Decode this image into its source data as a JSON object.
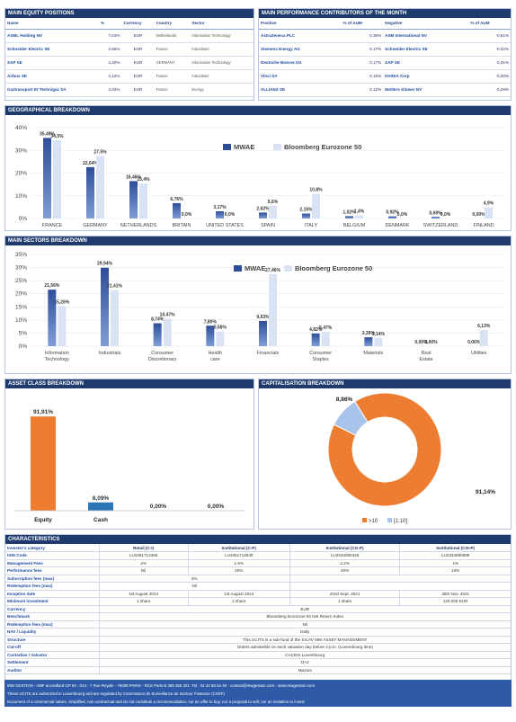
{
  "equity": {
    "title": "MAIN EQUITY POSITIONS",
    "cols": [
      "Name",
      "%",
      "Currency",
      "Country",
      "Sector"
    ],
    "rows": [
      {
        "name": "ASML Holding NV",
        "pct": "7,04%",
        "cur": "EUR",
        "country": "Netherlands",
        "sector": "Information Technology"
      },
      {
        "name": "Schneider Electric SE",
        "pct": "4,96%",
        "cur": "EUR",
        "country": "France",
        "sector": "Industrials"
      },
      {
        "name": "SAP SE",
        "pct": "4,20%",
        "cur": "EUR",
        "country": "GERMANY",
        "sector": "Information Technology"
      },
      {
        "name": "Airbus SE",
        "pct": "4,12%",
        "cur": "EUR",
        "country": "France",
        "sector": "Industrials"
      },
      {
        "name": "Gaztransport Et Technigaz SA",
        "pct": "4,03%",
        "cur": "EUR",
        "country": "France",
        "sector": "Energy"
      }
    ]
  },
  "contrib": {
    "title": "MAIN PERFORMANCE CONTRIBUTORS OF THE MONTH",
    "cols": [
      "Positive",
      "% of AUM",
      "Negative",
      "% of AUM"
    ],
    "rows": [
      {
        "pos": "AstraZeneca PLC",
        "pv": "0,36%",
        "neg": "ASM International NV",
        "nv": "-0,61%"
      },
      {
        "pos": "Siemens Energy AG",
        "pv": "0,17%",
        "neg": "Schneider Electric SE",
        "nv": "-0,32%"
      },
      {
        "pos": "Deutsche Boerse AG",
        "pv": "0,17%",
        "neg": "SAP SE",
        "nv": "-0,31%"
      },
      {
        "pos": "Vinci SA",
        "pv": "0,15%",
        "neg": "NVIDIA Corp",
        "nv": "-0,30%"
      },
      {
        "pos": "ALLIANZ SE",
        "pv": "0,12%",
        "neg": "Wolters Kluwer NV",
        "nv": "-0,29%"
      }
    ]
  },
  "geo_title": "GEOGRAPHICAL BREAKDOWN",
  "sector_title": "MAIN SECTORS BREAKDOWN",
  "asset_title": "ASSET CLASS BREAKDOWN",
  "cap_title": "CAPITALISATION BREAKDOWN",
  "colors": {
    "fund": "#2e4e9a",
    "bench": "#d9e3f3",
    "equity": "#ed7d31",
    "cash": "#2e75b6",
    "pie_big": "#ed7d31",
    "pie_small": "#a9c4ea"
  },
  "chart_data": [
    {
      "type": "bar",
      "title": "GEOGRAPHICAL BREAKDOWN",
      "categories": [
        "FRANCE",
        "GERMANY",
        "NETHERLANDS",
        "BRITAIN",
        "UNITED STATES",
        "SPAIN",
        "ITALY",
        "BELGIUM",
        "DENMARK",
        "SWITZERLAND",
        "FINLAND"
      ],
      "series": [
        {
          "name": "MWAE",
          "values": [
            35.49,
            22.64,
            16.46,
            6.76,
            3.17,
            2.62,
            2.15,
            1.02,
            0.92,
            0.69,
            0.0
          ],
          "labels": [
            "35,49%",
            "22,64%",
            "16,46%",
            "6,76%",
            "3,17%",
            "2,62%",
            "2,15%",
            "1,02%",
            "0,92%",
            "0,69%",
            "0,00%"
          ]
        },
        {
          "name": "Bloomberg Eurozone 50",
          "values": [
            34.5,
            27.5,
            15.4,
            0.0,
            0.0,
            5.6,
            10.8,
            1.4,
            0.0,
            0.0,
            4.9
          ],
          "labels": [
            "34,5%",
            "27,5%",
            "15,4%",
            "0,0%",
            "0,0%",
            "5,6%",
            "10,8%",
            "1,4%",
            "0,0%",
            "0,0%",
            "4,9%"
          ]
        }
      ],
      "yticks": [
        "40%",
        "30%",
        "20%",
        "10%",
        "0%"
      ],
      "ylim": [
        0,
        40
      ],
      "legend": "top-center"
    },
    {
      "type": "bar",
      "title": "MAIN SECTORS BREAKDOWN",
      "categories": [
        "Information Technology",
        "Industrials",
        "Consumer Discretionary",
        "Health care",
        "Financials",
        "Consumer Staples",
        "Materials",
        "Real Estate",
        "Utilities"
      ],
      "series": [
        {
          "name": "MWAE",
          "values": [
            21.56,
            29.94,
            8.74,
            7.8,
            9.63,
            4.82,
            3.39,
            0.0,
            0.0
          ],
          "labels": [
            "21,56%",
            "29,94%",
            "8,74%",
            "7,80%",
            "9,63%",
            "4,82%",
            "3,39%",
            "0,00%",
            "0,00%"
          ]
        },
        {
          "name": "Bloomberg Eurozone 50",
          "values": [
            15.26,
            21.41,
            10.47,
            5.58,
            27.46,
            5.47,
            3.14,
            0.0,
            6.13
          ],
          "labels": [
            "15,26%",
            "21,41%",
            "10,47%",
            "5,58%",
            "27,46%",
            "5,47%",
            "3,14%",
            "0,00%",
            "6,13%"
          ]
        }
      ],
      "yticks": [
        "35%",
        "30%",
        "25%",
        "20%",
        "15%",
        "10%",
        "5%",
        "0%"
      ],
      "ylim": [
        0,
        35
      ],
      "legend": "top-center"
    },
    {
      "type": "bar",
      "title": "ASSET CLASS BREAKDOWN",
      "categories": [
        "Equity",
        "Cash",
        "",
        ""
      ],
      "values": [
        91.91,
        8.09,
        0.0,
        0.0
      ],
      "labels": [
        "91,91%",
        "8,09%",
        "0,00%",
        "0,00%"
      ],
      "ylim": [
        0,
        100
      ]
    },
    {
      "type": "pie",
      "title": "CAPITALISATION BREAKDOWN",
      "categories": [
        ">10",
        "[1;10]"
      ],
      "values": [
        91.14,
        8.86
      ],
      "labels": [
        "91,14%",
        "8,86%"
      ],
      "legend": "bottom"
    }
  ],
  "characteristics": {
    "title": "CHARACTERISTICS",
    "share_classes": [
      "Retail (C-I)",
      "Institutional (C-P)",
      "Institutional (CG-P)",
      "Institutional (CSI-P)"
    ],
    "rows": [
      {
        "label": "Investor's category",
        "vals": [
          "Retail (C-I)",
          "Institutional (C-P)",
          "Institutional (CG-P)",
          "Institutional (CSI-P)"
        ],
        "head": true
      },
      {
        "label": "ISIN Code",
        "vals": [
          "LU1061712466",
          "LU1061712540",
          "LU2334080426",
          "LU2334080699"
        ]
      },
      {
        "label": "Management Fees",
        "vals": [
          "2%",
          "1.5%",
          "2.2%",
          "1%"
        ]
      },
      {
        "label": "Performance fees",
        "vals": [
          "Nil",
          "20%",
          "20%",
          "10%"
        ]
      },
      {
        "label": "Subscription fees (max)",
        "span": "2%",
        "split": 2
      },
      {
        "label": "Redemption fees (max)",
        "span": "Nil",
        "split": 2
      },
      {
        "label": "Inception date",
        "vals": [
          "1st August 2014",
          "1st August 2014",
          "22nd Sept. 2021",
          "30th Nov. 2021"
        ]
      },
      {
        "label": "Minimum investment",
        "vals": [
          "1 share",
          "1 share",
          "1 share",
          "125 000 EUR"
        ]
      },
      {
        "label": "Currency",
        "span": "EUR"
      },
      {
        "label": "Benchmark",
        "span": "Bloomberg Eurozone 50 Net Return Index"
      },
      {
        "label": "Redemption fees (max)",
        "span": "Nil"
      },
      {
        "label": "NAV / Liquidity",
        "span": "Daily"
      },
      {
        "label": "Structure",
        "span": "This UCITS is a sub-fund of the SICAV MW ASSET MANAGEMENT"
      },
      {
        "label": "Cut-off",
        "span": "Orders admissible on each valuation day before 3 p.m. (Luxembourg time)"
      },
      {
        "label": "Custodian / Valuator",
        "span": "CACEIS Luxembourg"
      },
      {
        "label": "Settlement",
        "span": "D+2"
      },
      {
        "label": "Auditor",
        "span": "Mazars"
      }
    ]
  },
  "footer": {
    "line1": "MW GESTION - AMF accredited GP 92 - 014 - 7 Rue Royale - 75008 PARIS - RCS Paris B 388 455 321 -Tel : 01 42 86 54 45 - contact@mwgestion.com - www.mwgestion.com",
    "line2": "These UCITS are authorized in Luxembourg and are regulated by Commission de Surveillance du Secteur Financier (CSSF)",
    "line3": "Document of a commercial nature, simplified, non-contractual and do not constitute a recommendation, nor an offer to buy, nor a proposal to sell, nor an invitation to invest"
  }
}
